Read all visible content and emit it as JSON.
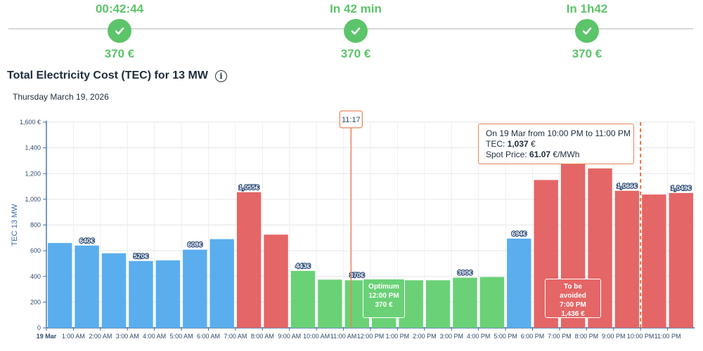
{
  "milestones": [
    {
      "time": "00:42:44",
      "price": "370 €"
    },
    {
      "time": "In 42 min",
      "price": "370 €"
    },
    {
      "time": "In 1h42",
      "price": "370 €"
    }
  ],
  "header": {
    "title": "Total Electricity Cost (TEC) for 13 MW",
    "info_icon": "i",
    "date": "Thursday March 19, 2026"
  },
  "colors": {
    "blue": "#5aaeed",
    "red": "#e46666",
    "green": "#6ad177",
    "accent": "#e8845a",
    "axis": "#3f6ea8"
  },
  "now_marker": {
    "label": "11:17",
    "hour": 11.28
  },
  "forecast_start_hour": 22.0,
  "tooltip": {
    "line1": "On 19 Mar from 10:00 PM to 11:00 PM",
    "tec_label": "TEC: ",
    "tec_value": "1,037",
    "tec_unit": " €",
    "spot_label": "Spot Price: ",
    "spot_value": "61.07",
    "spot_unit": " €/MWh"
  },
  "optimum": {
    "title": "Optimum",
    "time": "12:00 PM",
    "price": "370 €"
  },
  "avoid": {
    "title": "To be avoided",
    "time": "7:00 PM",
    "price": "1,436 €"
  },
  "chart_data": {
    "type": "bar",
    "title": "Total Electricity Cost (TEC) for 13 MW",
    "ylabel": "TEC 13 MW",
    "xlabel": "",
    "ylim": [
      0,
      1600
    ],
    "yticks": [
      0,
      200,
      400,
      600,
      800,
      1000,
      1200,
      1400,
      1600
    ],
    "ytick_labels": [
      "0",
      "200",
      "400",
      "600",
      "800",
      "1,000",
      "1,200",
      "1,400",
      "1,600 €"
    ],
    "categories": [
      "19 Mar",
      "1:00 AM",
      "2:00 AM",
      "3:00 AM",
      "4:00 AM",
      "5:00 AM",
      "6:00 AM",
      "7:00 AM",
      "8:00 AM",
      "9:00 AM",
      "10:00 AM",
      "11:00 AM",
      "12:00 PM",
      "1:00 PM",
      "2:00 PM",
      "3:00 PM",
      "4:00 PM",
      "5:00 PM",
      "6:00 PM",
      "7:00 PM",
      "8:00 PM",
      "9:00 PM",
      "10:00 PM",
      "11:00 PM"
    ],
    "values": [
      660,
      640,
      580,
      520,
      525,
      608,
      690,
      1055,
      725,
      443,
      375,
      370,
      370,
      370,
      370,
      390,
      395,
      694,
      1150,
      1436,
      1240,
      1066,
      1037,
      1049
    ],
    "bar_colors": [
      "blue",
      "blue",
      "blue",
      "blue",
      "blue",
      "blue",
      "blue",
      "red",
      "red",
      "green",
      "green",
      "green",
      "green",
      "green",
      "green",
      "green",
      "green",
      "blue",
      "red",
      "red",
      "red",
      "red",
      "red",
      "red"
    ],
    "data_labels": [
      "",
      "640€",
      "",
      "520€",
      "",
      "608€",
      "",
      "1,055€",
      "",
      "443€",
      "",
      "370€",
      "",
      "",
      "",
      "390€",
      "",
      "694€",
      "",
      "",
      "",
      "1,066€",
      "",
      "1,049€"
    ]
  }
}
